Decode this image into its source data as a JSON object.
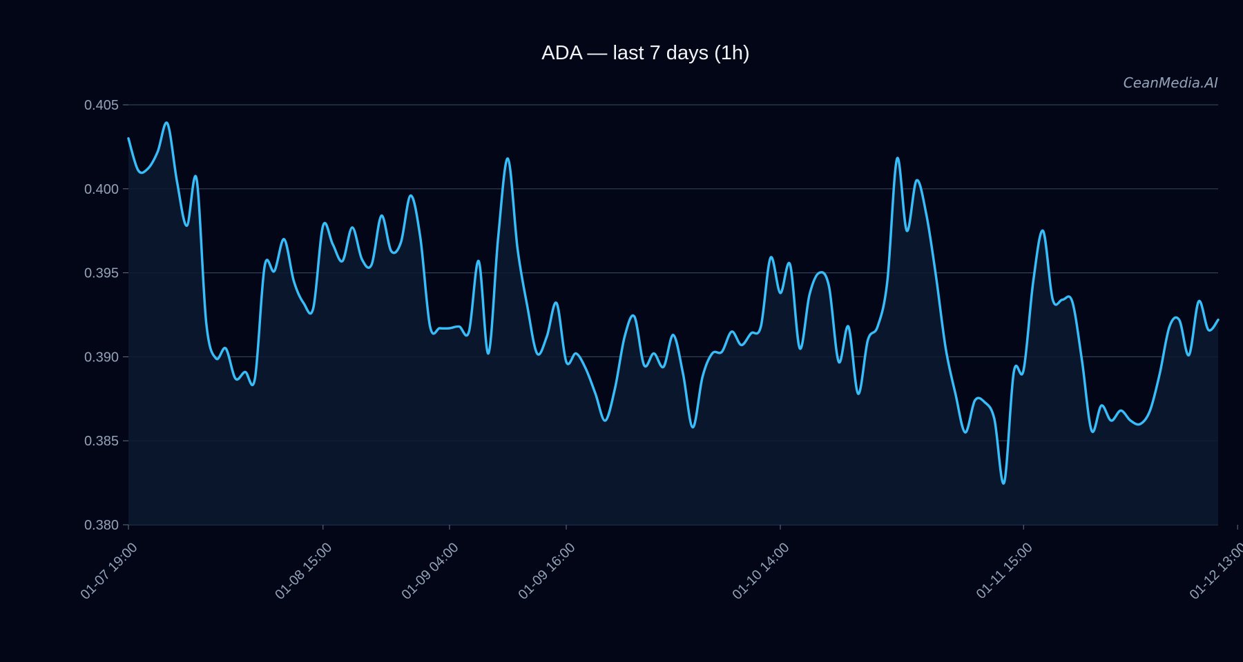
{
  "chart_data": {
    "type": "line",
    "title": "ADA — last 7 days (1h)",
    "watermark": "CeanMedia.AI",
    "xlabel": "",
    "ylabel": "",
    "ylim": [
      0.38,
      0.405
    ],
    "yticks": [
      "0.380",
      "0.385",
      "0.390",
      "0.395",
      "0.400",
      "0.405"
    ],
    "grid": true,
    "legend": "none",
    "line_color": "#38bdf8",
    "fill_color": "#0b1a30",
    "background": "#020617",
    "x_start": "01-07 19:00",
    "x_step": "1h",
    "xticks": [
      {
        "label": "01-07 19:00",
        "index": 0
      },
      {
        "label": "01-08 15:00",
        "index": 20
      },
      {
        "label": "01-09 04:00",
        "index": 33
      },
      {
        "label": "01-09 16:00",
        "index": 45
      },
      {
        "label": "01-10 14:00",
        "index": 67
      },
      {
        "label": "01-11 15:00",
        "index": 92
      },
      {
        "label": "01-12 13:00",
        "index": 114
      }
    ],
    "series": [
      {
        "values": [
          0.403,
          0.4011,
          0.4012,
          0.4022,
          0.4039,
          0.4004,
          0.3978,
          0.4006,
          0.392,
          0.3899,
          0.3905,
          0.3887,
          0.3891,
          0.3887,
          0.3954,
          0.3951,
          0.397,
          0.3945,
          0.3932,
          0.3929,
          0.3978,
          0.3967,
          0.3957,
          0.3977,
          0.3958,
          0.3955,
          0.3984,
          0.3963,
          0.3968,
          0.3996,
          0.3971,
          0.3918,
          0.3917,
          0.3917,
          0.3918,
          0.3915,
          0.3957,
          0.3902,
          0.3971,
          0.4018,
          0.3964,
          0.393,
          0.3902,
          0.3912,
          0.3932,
          0.3897,
          0.3902,
          0.3893,
          0.3878,
          0.3862,
          0.3881,
          0.3912,
          0.3924,
          0.3895,
          0.3902,
          0.3894,
          0.3913,
          0.389,
          0.3858,
          0.3888,
          0.3902,
          0.3903,
          0.3915,
          0.3907,
          0.3914,
          0.3918,
          0.3959,
          0.3938,
          0.3955,
          0.3905,
          0.3937,
          0.395,
          0.3942,
          0.3897,
          0.3918,
          0.3878,
          0.391,
          0.3918,
          0.3945,
          0.4018,
          0.3975,
          0.4005,
          0.3985,
          0.3948,
          0.3905,
          0.3878,
          0.3855,
          0.3874,
          0.3873,
          0.3863,
          0.3825,
          0.3891,
          0.3892,
          0.3945,
          0.3975,
          0.3934,
          0.3934,
          0.3933,
          0.3898,
          0.3856,
          0.3871,
          0.3862,
          0.3868,
          0.3862,
          0.386,
          0.3868,
          0.389,
          0.3918,
          0.3922,
          0.3901,
          0.3933,
          0.3916,
          0.3922
        ]
      }
    ]
  }
}
